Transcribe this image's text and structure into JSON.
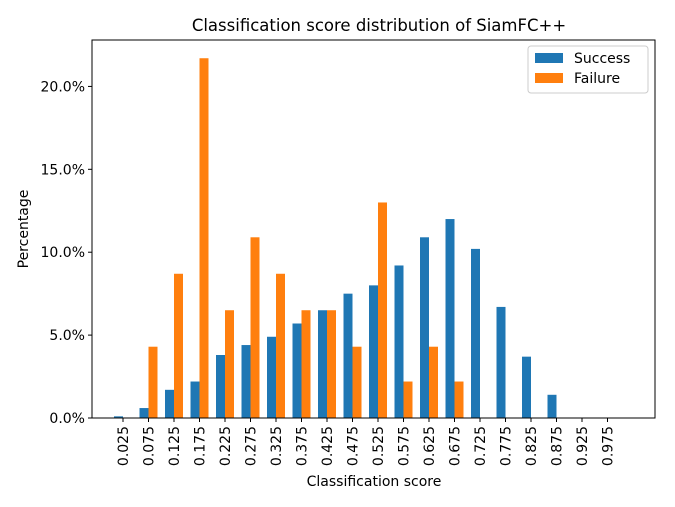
{
  "chart_data": {
    "type": "bar",
    "title": "Classification score distribution of SiamFC++",
    "xlabel": "Classification score",
    "ylabel": "Percentage",
    "categories": [
      "0.025",
      "0.075",
      "0.125",
      "0.175",
      "0.225",
      "0.275",
      "0.325",
      "0.375",
      "0.425",
      "0.475",
      "0.525",
      "0.575",
      "0.625",
      "0.675",
      "0.725",
      "0.775",
      "0.825",
      "0.875",
      "0.925",
      "0.975"
    ],
    "series": [
      {
        "name": "Success",
        "color": "#1f77b4",
        "values": [
          0.1,
          0.6,
          1.7,
          2.2,
          3.8,
          4.4,
          4.9,
          5.7,
          6.5,
          7.5,
          8.0,
          9.2,
          10.9,
          12.0,
          10.2,
          6.7,
          3.7,
          1.4,
          0.0,
          0.0
        ]
      },
      {
        "name": "Failure",
        "color": "#ff7f0e",
        "values": [
          0.0,
          4.3,
          8.7,
          21.7,
          6.5,
          10.9,
          8.7,
          6.5,
          6.5,
          4.3,
          13.0,
          2.2,
          4.3,
          2.2,
          0.0,
          0.0,
          0.0,
          0.0,
          0.0,
          0.0
        ]
      }
    ],
    "ylim": [
      0,
      22.8
    ],
    "yticks": [
      0,
      5,
      10,
      15,
      20
    ],
    "ytick_labels": [
      "0.0%",
      "5.0%",
      "10.0%",
      "15.0%",
      "20.0%"
    ],
    "legend_position": "top-right",
    "grid": false
  }
}
